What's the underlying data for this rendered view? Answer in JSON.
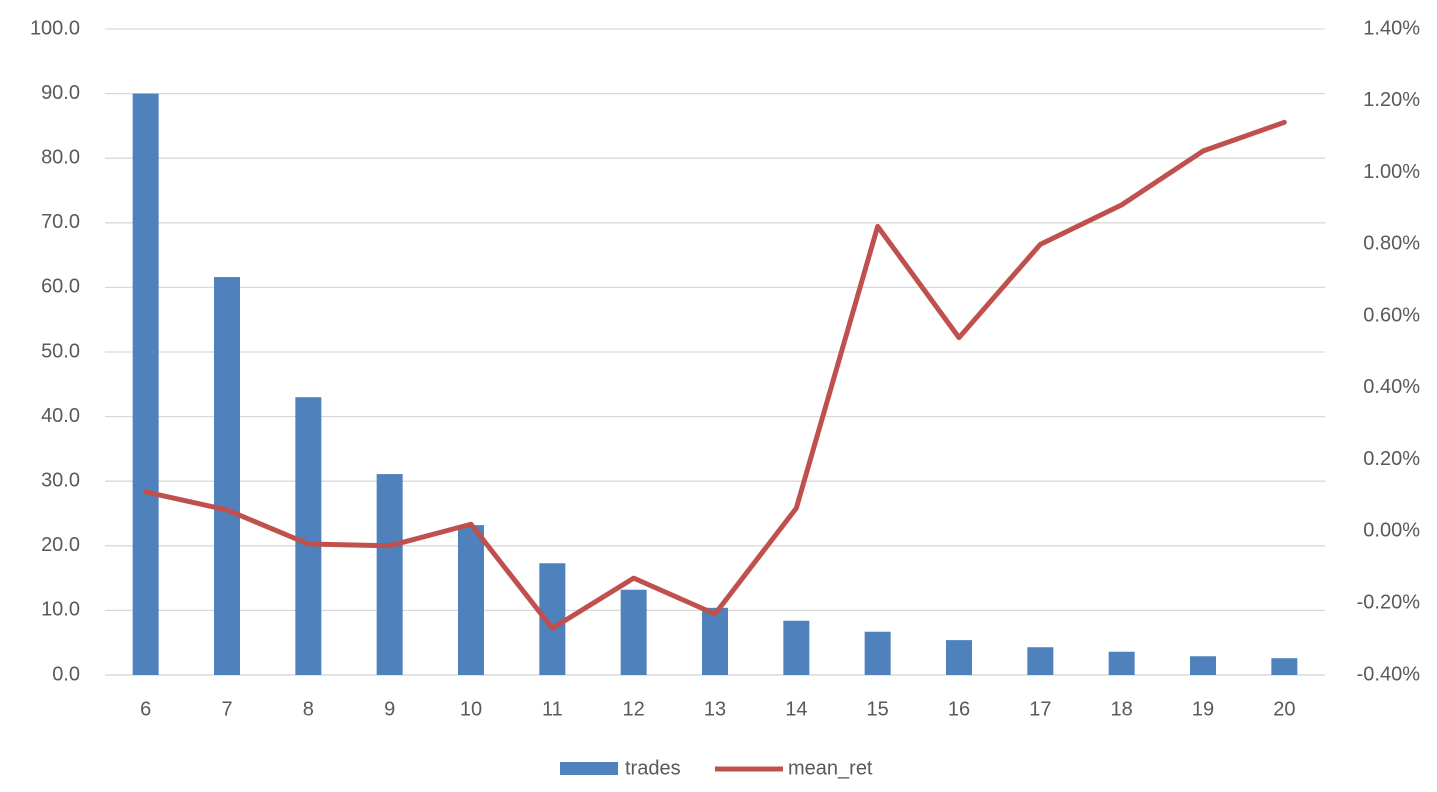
{
  "chart_data": {
    "type": "bar",
    "categories": [
      6,
      7,
      8,
      9,
      10,
      11,
      12,
      13,
      14,
      15,
      16,
      17,
      18,
      19,
      20
    ],
    "series": [
      {
        "name": "trades",
        "type": "bar",
        "color": "#4f81bd",
        "values": [
          90.0,
          61.6,
          43.0,
          31.1,
          23.2,
          17.3,
          13.2,
          10.4,
          8.4,
          6.7,
          5.4,
          4.3,
          3.6,
          2.9,
          2.6
        ]
      },
      {
        "name": "mean_ret",
        "type": "line",
        "axis": "y2",
        "color": "#c0504d",
        "values": [
          0.11,
          0.06,
          -0.035,
          -0.04,
          0.02,
          -0.27,
          -0.13,
          -0.23,
          0.065,
          0.85,
          0.54,
          0.8,
          0.91,
          1.06,
          1.14
        ]
      }
    ],
    "ylim": [
      0,
      100
    ],
    "yticks": [
      {
        "value": 0,
        "label": "0.0"
      },
      {
        "value": 10,
        "label": "10.0"
      },
      {
        "value": 20,
        "label": "20.0"
      },
      {
        "value": 30,
        "label": "30.0"
      },
      {
        "value": 40,
        "label": "40.0"
      },
      {
        "value": 50,
        "label": "50.0"
      },
      {
        "value": 60,
        "label": "60.0"
      },
      {
        "value": 70,
        "label": "70.0"
      },
      {
        "value": 80,
        "label": "80.0"
      },
      {
        "value": 90,
        "label": "90.0"
      },
      {
        "value": 100,
        "label": "100.0"
      }
    ],
    "y2lim": [
      -0.4,
      1.4
    ],
    "y2ticks": [
      {
        "value": -0.4,
        "label": "-0.40%"
      },
      {
        "value": -0.2,
        "label": "-0.20%"
      },
      {
        "value": 0,
        "label": "0.00%"
      },
      {
        "value": 0.2,
        "label": "0.20%"
      },
      {
        "value": 0.4,
        "label": "0.40%"
      },
      {
        "value": 0.6,
        "label": "0.60%"
      },
      {
        "value": 0.8,
        "label": "0.80%"
      },
      {
        "value": 1.0,
        "label": "1.00%"
      },
      {
        "value": 1.2,
        "label": "1.20%"
      },
      {
        "value": 1.4,
        "label": "1.40%"
      }
    ],
    "grid": true,
    "legend": "bottom"
  }
}
